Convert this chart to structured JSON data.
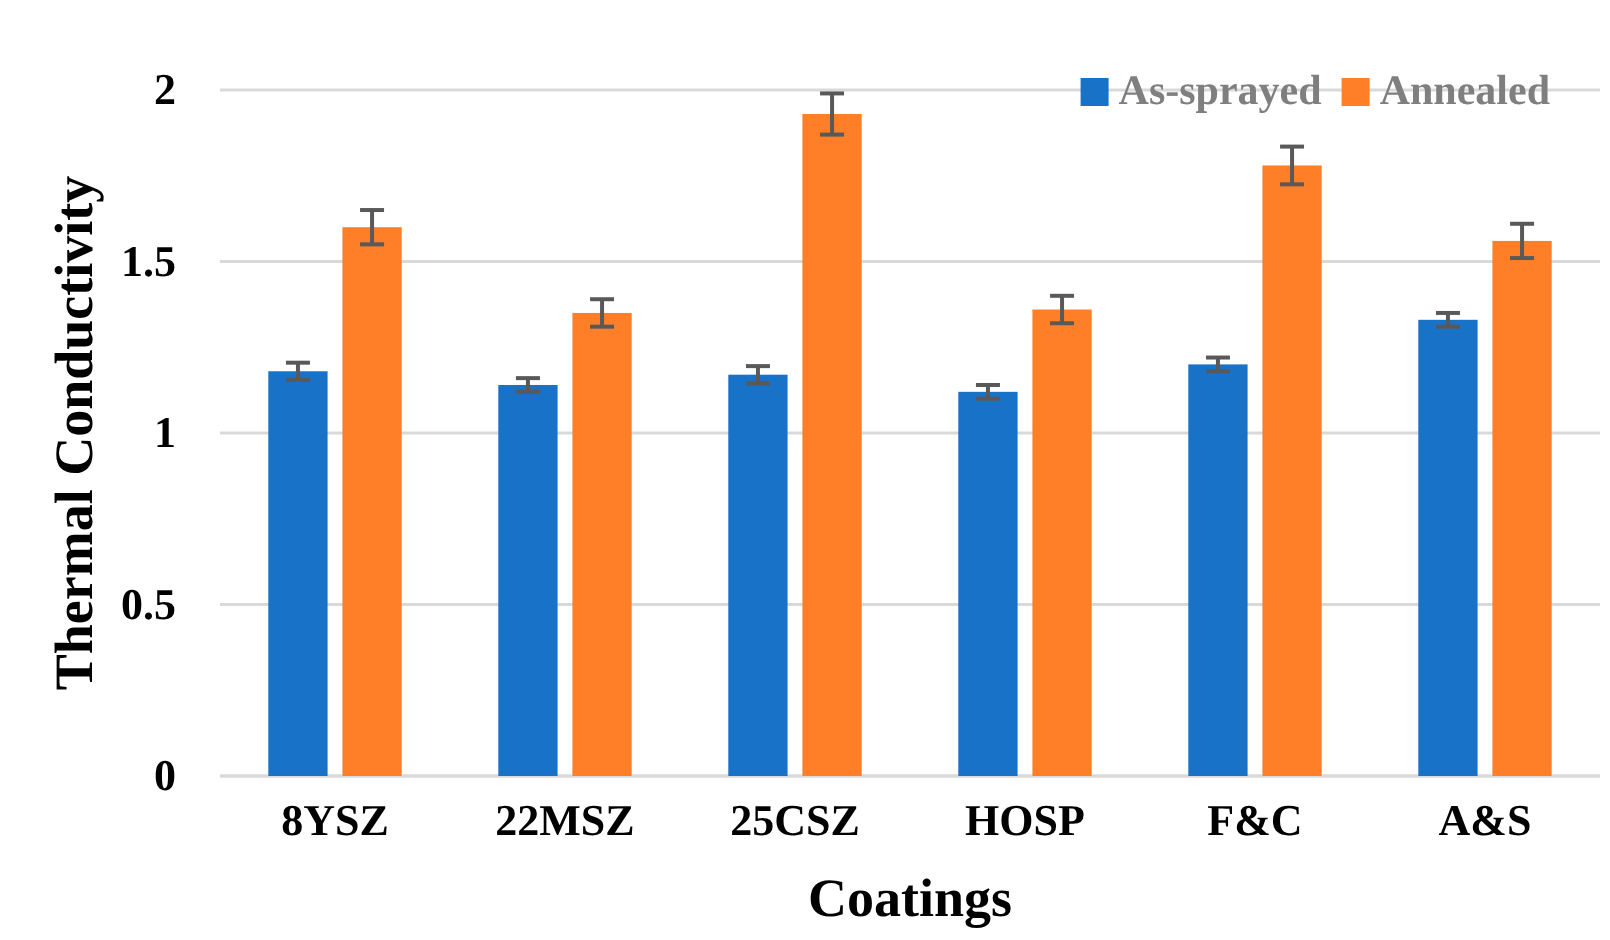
{
  "chart_data": {
    "type": "bar",
    "xlabel": "Coatings",
    "ylabel": "Thermal Conductivity",
    "categories": [
      "8YSZ",
      "22MSZ",
      "25CSZ",
      "HOSP",
      "F&C",
      "A&S"
    ],
    "series": [
      {
        "name": "As-sprayed",
        "color": "#1873c8",
        "values": [
          1.18,
          1.14,
          1.17,
          1.12,
          1.2,
          1.33
        ],
        "errors": [
          0.025,
          0.02,
          0.025,
          0.02,
          0.02,
          0.02
        ]
      },
      {
        "name": "Annealed",
        "color": "#fe7f27",
        "values": [
          1.6,
          1.35,
          1.93,
          1.36,
          1.78,
          1.56
        ],
        "errors": [
          0.05,
          0.04,
          0.06,
          0.04,
          0.055,
          0.05
        ]
      }
    ],
    "ylim": [
      0,
      2.0
    ],
    "yticks": [
      0,
      0.5,
      1,
      1.5,
      2
    ],
    "grid": "y",
    "legend": "top right"
  }
}
